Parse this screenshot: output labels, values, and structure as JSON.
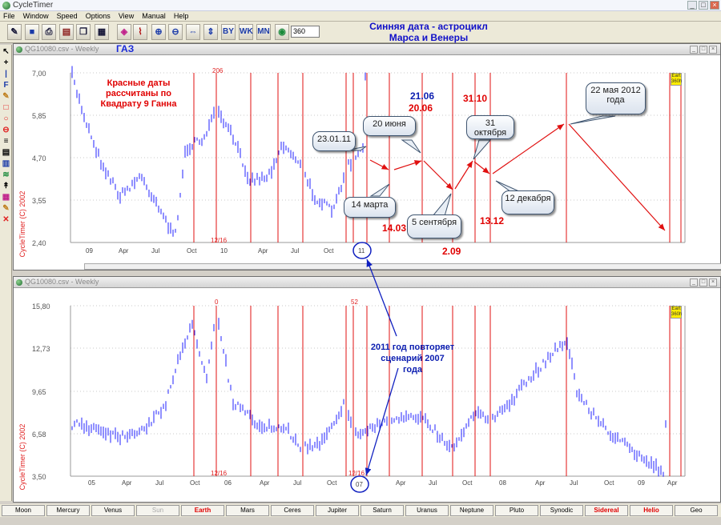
{
  "app": {
    "title": "CycleTimer",
    "window_controls": [
      "_",
      "□",
      "×"
    ]
  },
  "menu": [
    "File",
    "Window",
    "Speed",
    "Options",
    "View",
    "Manual",
    "Help"
  ],
  "toolbar": {
    "period_value": "360",
    "icons": [
      "new-icon",
      "save-icon",
      "print-icon",
      "book-icon",
      "copy-icon",
      "palette-icon",
      "chart-icon",
      "zoom-in-icon",
      "zoom-out-icon",
      "fit-width-icon",
      "fit-height-icon",
      "by-icon",
      "wk-icon",
      "mn-icon",
      "globe-icon"
    ],
    "by": "BY",
    "wk": "WK",
    "mn": "MN"
  },
  "headline": {
    "line1": "Синняя дата - астроцикл",
    "line2": "Марса и Венеры"
  },
  "left_tools": [
    "↖",
    "+",
    "|",
    "F",
    "✎",
    "□",
    "○",
    "⊖",
    "≡",
    "▤",
    "▥",
    "≋",
    "↟",
    "▦",
    "✎",
    "✕"
  ],
  "upper": {
    "tag": "ГАЗ",
    "title": "QG10080.csv - Weekly",
    "y_ticks": [
      "7,00",
      "5,85",
      "4,70",
      "3,55",
      "2,40"
    ],
    "x_ticks": [
      {
        "t": "09",
        "x": 107
      },
      {
        "t": "Apr",
        "x": 148
      },
      {
        "t": "Jul",
        "x": 189
      },
      {
        "t": "Oct",
        "x": 233
      },
      {
        "t": "10",
        "x": 275
      },
      {
        "t": "Apr",
        "x": 322
      },
      {
        "t": "Jul",
        "x": 363
      },
      {
        "t": "Oct",
        "x": 404
      }
    ],
    "top_label": "206",
    "bottom_label": "12/16",
    "copyright": "CycleTimer (C) 2002",
    "earth": "Eart 360h",
    "circle_label": "11",
    "note": "Красные даты рассчитаны по Квадрату 9 Ганна"
  },
  "lower": {
    "title": "QG10080.csv - Weekly",
    "y_ticks": [
      "15,80",
      "12,73",
      "9,65",
      "6,58",
      "3,50"
    ],
    "x_ticks": [
      {
        "t": "05",
        "x": 110
      },
      {
        "t": "Apr",
        "x": 152
      },
      {
        "t": "Jul",
        "x": 194
      },
      {
        "t": "Oct",
        "x": 237
      },
      {
        "t": "06",
        "x": 280
      },
      {
        "t": "Apr",
        "x": 324
      },
      {
        "t": "Jul",
        "x": 366
      },
      {
        "t": "Oct",
        "x": 408
      },
      {
        "t": "Apr",
        "x": 494
      },
      {
        "t": "Jul",
        "x": 535
      },
      {
        "t": "Oct",
        "x": 577
      },
      {
        "t": "08",
        "x": 623
      },
      {
        "t": "Apr",
        "x": 668
      },
      {
        "t": "Jul",
        "x": 711
      },
      {
        "t": "Oct",
        "x": 754
      },
      {
        "t": "09",
        "x": 796
      },
      {
        "t": "Apr",
        "x": 833
      }
    ],
    "top_label": "0",
    "top_label2": "52",
    "bottom_label": "12/16",
    "bottom_label2": "12/16",
    "copyright": "CycleTimer (C) 2002",
    "earth": "Eart 360h",
    "circle_label": "07"
  },
  "annotations": {
    "callouts": [
      "23.01.11",
      "20 июня",
      "14 марта",
      "5 сентября",
      "31 октября",
      "12 декабря",
      "22 мая 2012 года"
    ],
    "red_dates": [
      "14.03",
      "20.06",
      "2.09",
      "31.10",
      "13.12"
    ],
    "blue_dates": [
      "21.06"
    ],
    "repeat_note": "2011 год повторяет сценарий 2007 года"
  },
  "planet_tabs": [
    "Moon",
    "Mercury",
    "Venus",
    "Sun",
    "Earth",
    "Mars",
    "Ceres",
    "Jupiter",
    "Saturn",
    "Uranus",
    "Neptune",
    "Pluto",
    "Synodic",
    "Sidereal",
    "Helio",
    "Geo"
  ],
  "colors": {
    "bars": "#2020ff",
    "cycle_lines": "#e01010",
    "arrows": "#e01010",
    "blue_text": "#0b1db0",
    "active_tab": "#e00000",
    "disabled_tab": "#aaaaaa"
  }
}
